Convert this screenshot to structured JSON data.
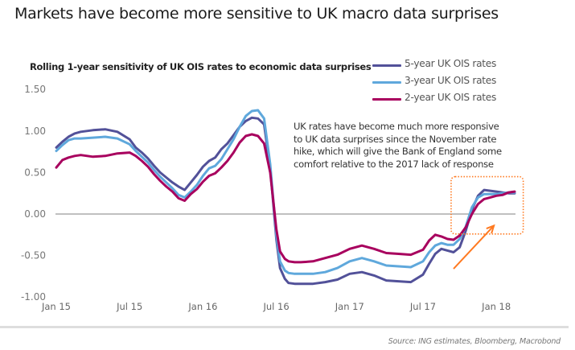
{
  "chart_data": {
    "type": "line",
    "title": "Markets have become more sensitive to UK macro data surprises",
    "subtitle": "Rolling 1-year sensitivity of UK OIS rates to economic data surprises",
    "xlabel": "",
    "ylabel": "",
    "ylim": [
      -1.0,
      1.5
    ],
    "yticks": [
      "1.50",
      "1.00",
      "0.50",
      "0.00",
      "-0.50",
      "-1.00"
    ],
    "ytick_values": [
      1.5,
      1.0,
      0.5,
      0.0,
      -0.5,
      -1.0
    ],
    "xticks": [
      "Jan 15",
      "Jul 15",
      "Jan 16",
      "Jul 16",
      "Jan 17",
      "Jul 17",
      "Jan 18"
    ],
    "xtick_months": [
      0,
      6,
      12,
      18,
      24,
      30,
      36
    ],
    "legend_position": "top-right",
    "grid": false,
    "x_months": [
      0,
      0.5,
      1,
      1.5,
      2,
      3,
      4,
      5,
      6,
      6.5,
      7,
      7.5,
      8,
      8.5,
      9,
      9.5,
      10,
      10.5,
      11,
      11.5,
      12,
      12.5,
      13,
      13.5,
      14,
      14.5,
      15,
      15.5,
      16,
      16.5,
      17,
      17.5,
      18,
      18.3,
      18.7,
      19,
      19.5,
      20,
      21,
      22,
      23,
      24,
      25,
      26,
      27,
      28,
      29,
      30,
      30.5,
      31,
      31.5,
      32,
      32.5,
      33,
      33.5,
      34,
      34.5,
      35,
      35.5,
      36,
      36.5,
      37,
      37.5
    ],
    "series": [
      {
        "name": "5-year UK OIS rates",
        "color": "#525199",
        "values": [
          0.8,
          0.87,
          0.93,
          0.97,
          0.99,
          1.01,
          1.02,
          0.99,
          0.9,
          0.8,
          0.74,
          0.67,
          0.58,
          0.5,
          0.44,
          0.38,
          0.33,
          0.29,
          0.38,
          0.47,
          0.57,
          0.64,
          0.68,
          0.78,
          0.85,
          0.95,
          1.05,
          1.12,
          1.16,
          1.15,
          1.08,
          0.55,
          -0.3,
          -0.65,
          -0.78,
          -0.83,
          -0.84,
          -0.84,
          -0.84,
          -0.82,
          -0.79,
          -0.72,
          -0.7,
          -0.74,
          -0.8,
          -0.81,
          -0.82,
          -0.73,
          -0.6,
          -0.48,
          -0.42,
          -0.44,
          -0.46,
          -0.4,
          -0.2,
          0.05,
          0.22,
          0.29,
          0.28,
          0.27,
          0.26,
          0.25,
          0.25
        ]
      },
      {
        "name": "3-year UK OIS rates",
        "color": "#5fa8dc",
        "values": [
          0.76,
          0.83,
          0.89,
          0.91,
          0.91,
          0.92,
          0.93,
          0.91,
          0.84,
          0.76,
          0.69,
          0.62,
          0.53,
          0.45,
          0.38,
          0.31,
          0.23,
          0.2,
          0.27,
          0.35,
          0.46,
          0.55,
          0.58,
          0.66,
          0.78,
          0.9,
          1.05,
          1.18,
          1.24,
          1.25,
          1.15,
          0.6,
          -0.25,
          -0.57,
          -0.68,
          -0.71,
          -0.72,
          -0.72,
          -0.72,
          -0.7,
          -0.65,
          -0.57,
          -0.53,
          -0.57,
          -0.62,
          -0.63,
          -0.64,
          -0.57,
          -0.46,
          -0.38,
          -0.35,
          -0.37,
          -0.37,
          -0.3,
          -0.15,
          0.08,
          0.2,
          0.24,
          0.24,
          0.24,
          0.25,
          0.26,
          0.26
        ]
      },
      {
        "name": "2-year UK OIS rates",
        "color": "#a8005e",
        "values": [
          0.56,
          0.65,
          0.68,
          0.7,
          0.71,
          0.69,
          0.7,
          0.73,
          0.74,
          0.7,
          0.64,
          0.57,
          0.48,
          0.4,
          0.33,
          0.27,
          0.19,
          0.16,
          0.24,
          0.3,
          0.39,
          0.46,
          0.49,
          0.56,
          0.64,
          0.74,
          0.86,
          0.94,
          0.96,
          0.94,
          0.85,
          0.5,
          -0.18,
          -0.45,
          -0.54,
          -0.57,
          -0.58,
          -0.58,
          -0.57,
          -0.53,
          -0.49,
          -0.42,
          -0.38,
          -0.42,
          -0.47,
          -0.48,
          -0.49,
          -0.43,
          -0.32,
          -0.25,
          -0.27,
          -0.3,
          -0.31,
          -0.26,
          -0.16,
          0.0,
          0.12,
          0.18,
          0.2,
          0.22,
          0.23,
          0.26,
          0.27
        ]
      }
    ],
    "annotation": [
      "UK rates have become much more responsive",
      "to UK data surprises since the November rate",
      "hike, which will give the Bank of England some",
      "comfort relative to the 2017 lack of response"
    ],
    "highlight_color": "#ff7a21",
    "source": "Source: ING estimates, Bloomberg, Macrobond"
  }
}
